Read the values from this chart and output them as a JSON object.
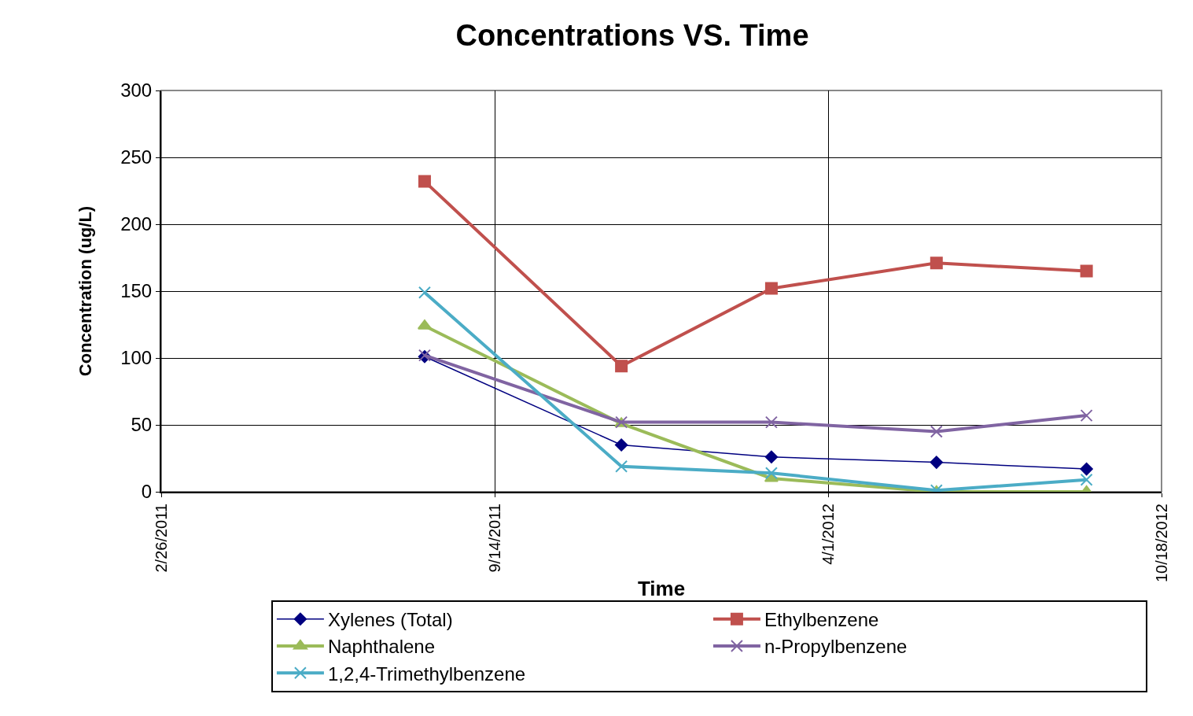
{
  "chart_data": {
    "type": "line",
    "title": "Concentrations VS. Time",
    "xlabel": "Time",
    "ylabel": "Concentration (ug/L)",
    "x": [
      "2011-08-03",
      "2011-11-29",
      "2012-02-27",
      "2012-06-05",
      "2012-09-03"
    ],
    "series": [
      {
        "name": "Xylenes (Total)",
        "color": "#000080",
        "marker": "diamond",
        "values": [
          101,
          35,
          26,
          22,
          17
        ]
      },
      {
        "name": "Ethylbenzene",
        "color": "#c0504d",
        "marker": "square",
        "values": [
          232,
          94,
          152,
          171,
          165
        ]
      },
      {
        "name": "Naphthalene",
        "color": "#9bbb59",
        "marker": "triangle",
        "values": [
          124,
          51,
          10,
          0,
          0
        ]
      },
      {
        "name": "n-Propylbenzene",
        "color": "#8064a2",
        "marker": "cross",
        "values": [
          102,
          52,
          52,
          45,
          57
        ]
      },
      {
        "name": "1,2,4-Trimethylbenzene",
        "color": "#4bacc6",
        "marker": "cross",
        "values": [
          149,
          19,
          14,
          1,
          9
        ]
      }
    ],
    "xlim": [
      "2011-02-26",
      "2012-10-18"
    ],
    "xticks": [
      {
        "value": "2011-02-26",
        "label": "2/26/2011"
      },
      {
        "value": "2011-09-14",
        "label": "9/14/2011"
      },
      {
        "value": "2012-04-01",
        "label": "4/1/2012"
      },
      {
        "value": "2012-10-18",
        "label": "10/18/2012"
      }
    ],
    "ylim": [
      0,
      300
    ],
    "yticks": [
      0,
      50,
      100,
      150,
      200,
      250,
      300
    ],
    "grid": true,
    "legend": "bottom"
  }
}
